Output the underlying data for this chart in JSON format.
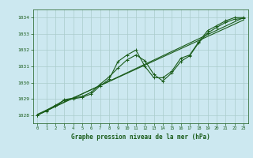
{
  "title": "Graphe pression niveau de la mer (hPa)",
  "bg_color": "#cce8f0",
  "grid_color": "#aacccc",
  "line_color": "#1a5c1a",
  "xlim": [
    -0.5,
    23.5
  ],
  "ylim": [
    1027.5,
    1034.5
  ],
  "yticks": [
    1028,
    1029,
    1030,
    1031,
    1032,
    1033,
    1034
  ],
  "xticks": [
    0,
    1,
    2,
    3,
    4,
    5,
    6,
    7,
    8,
    9,
    10,
    11,
    12,
    13,
    14,
    15,
    16,
    17,
    18,
    19,
    20,
    21,
    22,
    23
  ],
  "series1": {
    "x": [
      0,
      1,
      2,
      3,
      4,
      5,
      6,
      7,
      8,
      9,
      10,
      11,
      12,
      13,
      14,
      15,
      16,
      17,
      18,
      19,
      20,
      21,
      22,
      23
    ],
    "y": [
      1028.0,
      1028.3,
      1028.6,
      1028.9,
      1029.0,
      1029.1,
      1029.3,
      1029.8,
      1030.2,
      1031.3,
      1031.7,
      1032.0,
      1031.0,
      1030.3,
      1030.3,
      1030.7,
      1031.5,
      1031.7,
      1032.5,
      1033.2,
      1033.5,
      1033.8,
      1034.0,
      1034.0
    ]
  },
  "series2": {
    "x": [
      0,
      1,
      2,
      3,
      4,
      5,
      6,
      7,
      8,
      9,
      10,
      11,
      12,
      13,
      14,
      15,
      16,
      17,
      18,
      19,
      20,
      21,
      22,
      23
    ],
    "y": [
      1028.0,
      1028.25,
      1028.55,
      1028.95,
      1029.05,
      1029.15,
      1029.4,
      1029.9,
      1030.35,
      1030.9,
      1031.4,
      1031.7,
      1031.35,
      1030.5,
      1030.1,
      1030.6,
      1031.3,
      1031.65,
      1032.45,
      1033.05,
      1033.4,
      1033.7,
      1033.9,
      1033.95
    ]
  },
  "trend1": {
    "x": [
      0,
      23
    ],
    "y": [
      1028.0,
      1034.0
    ]
  },
  "trend2": {
    "x": [
      0,
      23
    ],
    "y": [
      1028.05,
      1033.85
    ]
  }
}
